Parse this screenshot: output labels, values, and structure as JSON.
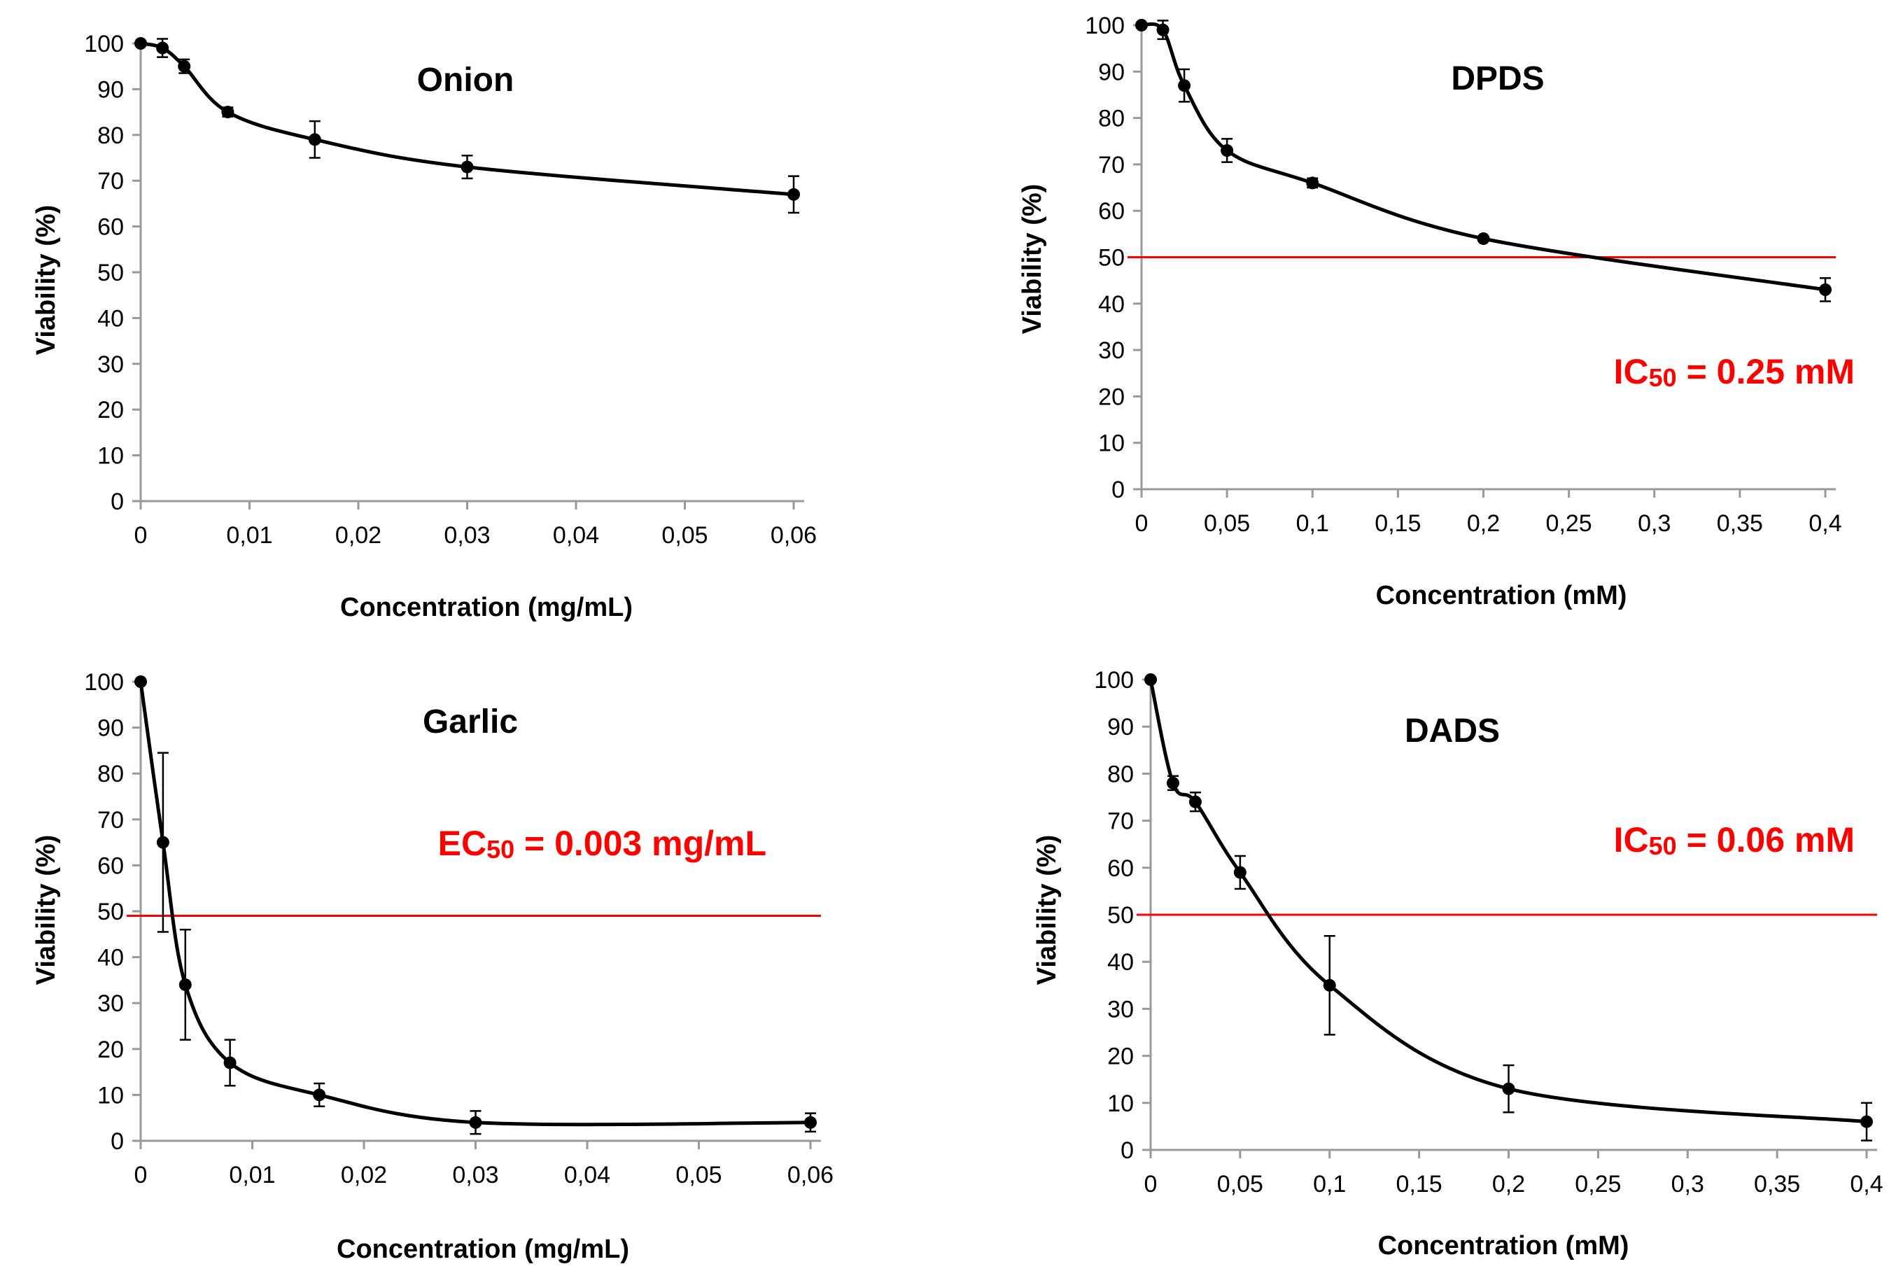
{
  "colors": {
    "curve": "#000000",
    "axis": "#999999",
    "threshold": "#ff0000",
    "annotation": "#ff0000"
  },
  "chart_data": [
    {
      "type": "line",
      "title": "Onion",
      "xlabel": "Concentration (mg/mL)",
      "ylabel": "Viability (%)",
      "xlim": [
        0,
        0.06
      ],
      "ylim": [
        0,
        100
      ],
      "x_ticks": [
        0,
        0.01,
        0.02,
        0.03,
        0.04,
        0.05,
        0.06
      ],
      "x_tick_labels": [
        "0",
        "0,01",
        "0,02",
        "0,03",
        "0,04",
        "0,05",
        "0,06"
      ],
      "y_ticks": [
        0,
        10,
        20,
        30,
        40,
        50,
        60,
        70,
        80,
        90,
        100
      ],
      "y_tick_labels": [
        "0",
        "10",
        "20",
        "30",
        "40",
        "50",
        "60",
        "70",
        "80",
        "90",
        "100"
      ],
      "grid": false,
      "series": [
        {
          "x": [
            0,
            0.002,
            0.004,
            0.008,
            0.016,
            0.03,
            0.06
          ],
          "y": [
            100,
            99,
            95,
            85,
            79,
            73,
            67
          ],
          "error": [
            0.5,
            2,
            1.5,
            1,
            4,
            2.5,
            4
          ]
        }
      ],
      "threshold": null,
      "annotation_main": "",
      "annotation_sub": "",
      "annotation_value": ""
    },
    {
      "type": "line",
      "title": "DPDS",
      "xlabel": "Concentration (mM)",
      "ylabel": "Viability (%)",
      "xlim": [
        0,
        0.4
      ],
      "ylim": [
        0,
        100
      ],
      "x_ticks": [
        0,
        0.05,
        0.1,
        0.15,
        0.2,
        0.25,
        0.3,
        0.35,
        0.4
      ],
      "x_tick_labels": [
        "0",
        "0,05",
        "0,1",
        "0,15",
        "0,2",
        "0,25",
        "0,3",
        "0,35",
        "0,4"
      ],
      "y_ticks": [
        0,
        10,
        20,
        30,
        40,
        50,
        60,
        70,
        80,
        90,
        100
      ],
      "y_tick_labels": [
        "0",
        "10",
        "20",
        "30",
        "40",
        "50",
        "60",
        "70",
        "80",
        "90",
        "100"
      ],
      "grid": false,
      "series": [
        {
          "x": [
            0,
            0.0125,
            0.025,
            0.05,
            0.1,
            0.2,
            0.4
          ],
          "y": [
            100,
            99,
            87,
            73,
            66,
            54,
            43
          ],
          "error": [
            0.5,
            2,
            3.5,
            2.5,
            1,
            0.5,
            2.5
          ]
        }
      ],
      "threshold": 50,
      "annotation_main": "IC",
      "annotation_sub": "50",
      "annotation_value": " = 0.25 mM"
    },
    {
      "type": "line",
      "title": "Garlic",
      "xlabel": "Concentration (mg/mL)",
      "ylabel": "Viability (%)",
      "xlim": [
        0,
        0.06
      ],
      "ylim": [
        0,
        100
      ],
      "x_ticks": [
        0,
        0.01,
        0.02,
        0.03,
        0.04,
        0.05,
        0.06
      ],
      "x_tick_labels": [
        "0",
        "0,01",
        "0,02",
        "0,03",
        "0,04",
        "0,05",
        "0,06"
      ],
      "y_ticks": [
        0,
        10,
        20,
        30,
        40,
        50,
        60,
        70,
        80,
        90,
        100
      ],
      "y_tick_labels": [
        "0",
        "10",
        "20",
        "30",
        "40",
        "50",
        "60",
        "70",
        "80",
        "90",
        "100"
      ],
      "grid": false,
      "series": [
        {
          "x": [
            0,
            0.002,
            0.004,
            0.008,
            0.016,
            0.03,
            0.06
          ],
          "y": [
            100,
            65,
            34,
            17,
            10,
            4,
            4
          ],
          "error": [
            0.5,
            19.5,
            12,
            5,
            2.5,
            2.5,
            2
          ]
        }
      ],
      "threshold": 49,
      "annotation_main": "EC",
      "annotation_sub": "50",
      "annotation_value": " = 0.003 mg/mL"
    },
    {
      "type": "line",
      "title": "DADS",
      "xlabel": "Concentration (mM)",
      "ylabel": "Viability (%)",
      "xlim": [
        0,
        0.4
      ],
      "ylim": [
        0,
        100
      ],
      "x_ticks": [
        0,
        0.05,
        0.1,
        0.15,
        0.2,
        0.25,
        0.3,
        0.35,
        0.4
      ],
      "x_tick_labels": [
        "0",
        "0,05",
        "0,1",
        "0,15",
        "0,2",
        "0,25",
        "0,3",
        "0,35",
        "0,4"
      ],
      "y_ticks": [
        0,
        10,
        20,
        30,
        40,
        50,
        60,
        70,
        80,
        90,
        100
      ],
      "y_tick_labels": [
        "0",
        "10",
        "20",
        "30",
        "40",
        "50",
        "60",
        "70",
        "80",
        "90",
        "100"
      ],
      "grid": false,
      "series": [
        {
          "x": [
            0,
            0.0125,
            0.025,
            0.05,
            0.1,
            0.2,
            0.4
          ],
          "y": [
            100,
            78,
            74,
            59,
            35,
            13,
            6
          ],
          "error": [
            0.5,
            1.5,
            2,
            3.5,
            10.5,
            5,
            4
          ]
        }
      ],
      "threshold": 50,
      "annotation_main": "IC",
      "annotation_sub": "50",
      "annotation_value": " = 0.06 mM"
    }
  ]
}
